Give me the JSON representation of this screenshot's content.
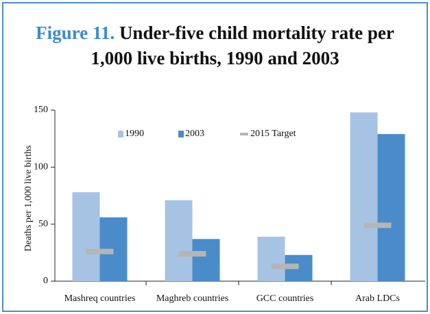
{
  "chart_data": {
    "type": "bar",
    "title_label": "Figure 11.",
    "title": "Under-five child mortality rate per 1,000 live births, 1990 and 2003",
    "y_label": "Deaths per 1,000 live births",
    "categories": [
      "Mashreq countries",
      "Maghreb countries",
      "GCC countries",
      "Arab LDCs"
    ],
    "series": [
      {
        "name": "1990",
        "color": "#a7c3e3",
        "values": [
          78,
          71,
          39,
          148
        ]
      },
      {
        "name": "2003",
        "color": "#4a8cc9",
        "values": [
          56,
          37,
          23,
          129
        ]
      },
      {
        "name": "2015 Target",
        "color": "#b5b5b5",
        "values": [
          26,
          24,
          13,
          49
        ],
        "marker": "dash"
      }
    ],
    "ylim": [
      0,
      150
    ],
    "yticks": [
      0,
      50,
      100,
      150
    ],
    "legend": "top"
  }
}
